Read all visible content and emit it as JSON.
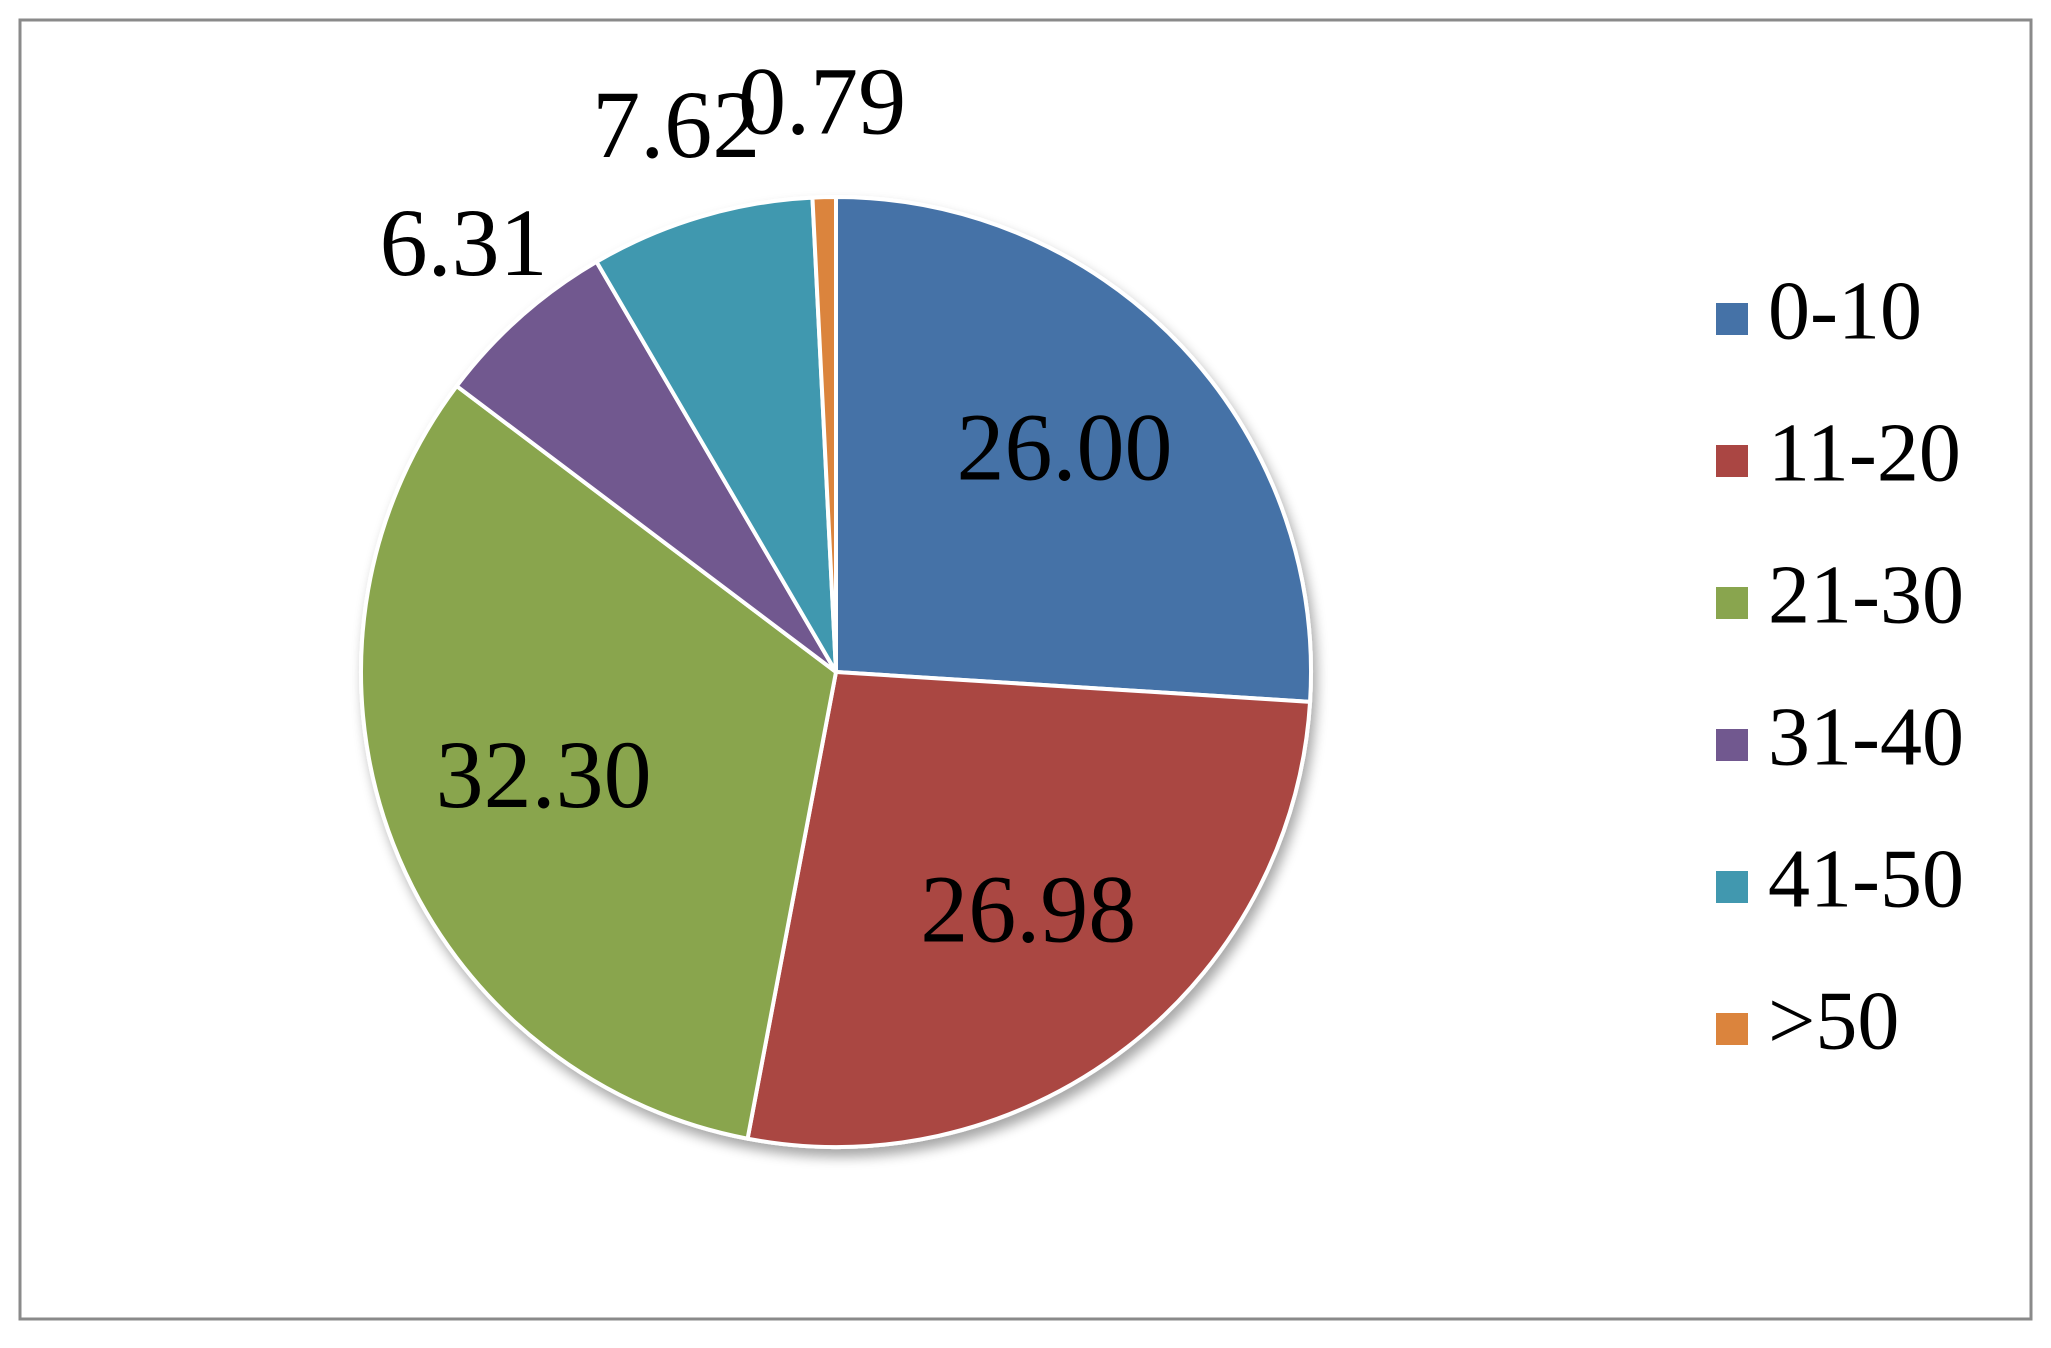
{
  "chart_data": {
    "type": "pie",
    "categories": [
      "0-10",
      "11-20",
      "21-30",
      "31-40",
      "41-50",
      ">50"
    ],
    "values": [
      26.0,
      26.98,
      32.3,
      6.31,
      7.62,
      0.79
    ],
    "value_labels": [
      "26.00",
      "26.98",
      "32.30",
      "6.31",
      "7.62",
      "0.79"
    ],
    "colors": [
      "#4572a7",
      "#aa4643",
      "#89a54e",
      "#71588f",
      "#4198af",
      "#db843d"
    ],
    "legend": "right"
  }
}
